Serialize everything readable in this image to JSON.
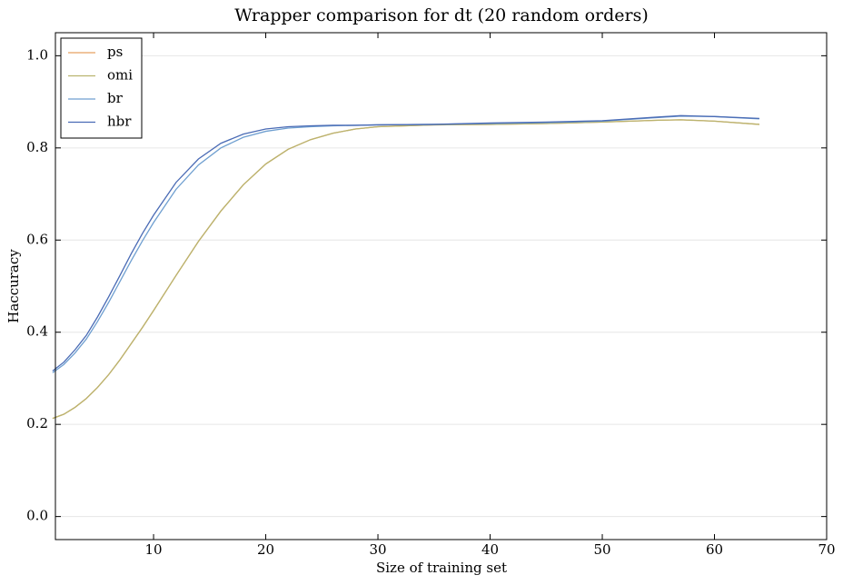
{
  "chart_data": {
    "type": "line",
    "title": "Wrapper comparison for dt (20 random orders)",
    "x_label": "Size of training set",
    "y_label": "Haccuracy",
    "x": [
      1,
      2,
      3,
      4,
      5,
      6,
      7,
      8,
      9,
      10,
      12,
      14,
      16,
      18,
      20,
      22,
      24,
      26,
      28,
      30,
      35,
      40,
      45,
      50,
      55,
      57,
      60,
      64
    ],
    "series": [
      {
        "name": "ps",
        "color": "#e8a060",
        "values": [
          0.213,
          0.222,
          0.237,
          0.256,
          0.28,
          0.308,
          0.34,
          0.375,
          0.41,
          0.447,
          0.523,
          0.597,
          0.663,
          0.72,
          0.765,
          0.797,
          0.818,
          0.832,
          0.841,
          0.846,
          0.85,
          0.851,
          0.853,
          0.856,
          0.86,
          0.861,
          0.858,
          0.851
        ]
      },
      {
        "name": "omi",
        "color": "#b9b46f",
        "values": [
          0.213,
          0.222,
          0.237,
          0.256,
          0.28,
          0.308,
          0.34,
          0.375,
          0.41,
          0.447,
          0.523,
          0.597,
          0.663,
          0.72,
          0.765,
          0.797,
          0.818,
          0.832,
          0.841,
          0.846,
          0.85,
          0.851,
          0.853,
          0.856,
          0.86,
          0.861,
          0.858,
          0.851
        ]
      },
      {
        "name": "br",
        "color": "#6f9fd0",
        "values": [
          0.312,
          0.33,
          0.355,
          0.385,
          0.423,
          0.465,
          0.51,
          0.555,
          0.598,
          0.638,
          0.71,
          0.763,
          0.8,
          0.823,
          0.836,
          0.843,
          0.846,
          0.848,
          0.849,
          0.85,
          0.851,
          0.853,
          0.855,
          0.858,
          0.866,
          0.869,
          0.868,
          0.863
        ]
      },
      {
        "name": "hbr",
        "color": "#4a6bb5",
        "values": [
          0.316,
          0.335,
          0.362,
          0.393,
          0.433,
          0.477,
          0.523,
          0.57,
          0.614,
          0.654,
          0.725,
          0.776,
          0.81,
          0.83,
          0.841,
          0.846,
          0.848,
          0.849,
          0.849,
          0.85,
          0.851,
          0.854,
          0.856,
          0.859,
          0.867,
          0.87,
          0.868,
          0.864
        ]
      }
    ],
    "xlim": [
      1.25,
      70
    ],
    "ylim": [
      -0.05,
      1.05
    ],
    "xticks": [
      10,
      20,
      30,
      40,
      50,
      60,
      70
    ],
    "yticks": [
      {
        "value": 0,
        "label": "0.0"
      },
      {
        "value": 0.2,
        "label": "0.2"
      },
      {
        "value": 0.4,
        "label": "0.4"
      },
      {
        "value": 0.6,
        "label": "0.6"
      },
      {
        "value": 0.8,
        "label": "0.8"
      },
      {
        "value": 1,
        "label": "1.0"
      }
    ],
    "grid": true,
    "legend": "upper-left"
  }
}
